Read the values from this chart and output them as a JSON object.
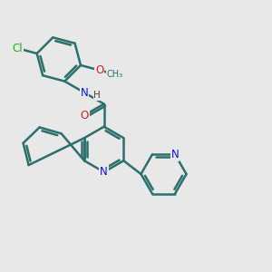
{
  "background_color": "#e8e8e8",
  "bond_color": "#2d6e6e",
  "bond_width": 1.8,
  "atom_colors": {
    "N": "#1010cc",
    "O": "#cc2020",
    "Cl": "#22aa22",
    "C": "#2d6e6e",
    "H": "#444444"
  },
  "font_size": 8.5
}
